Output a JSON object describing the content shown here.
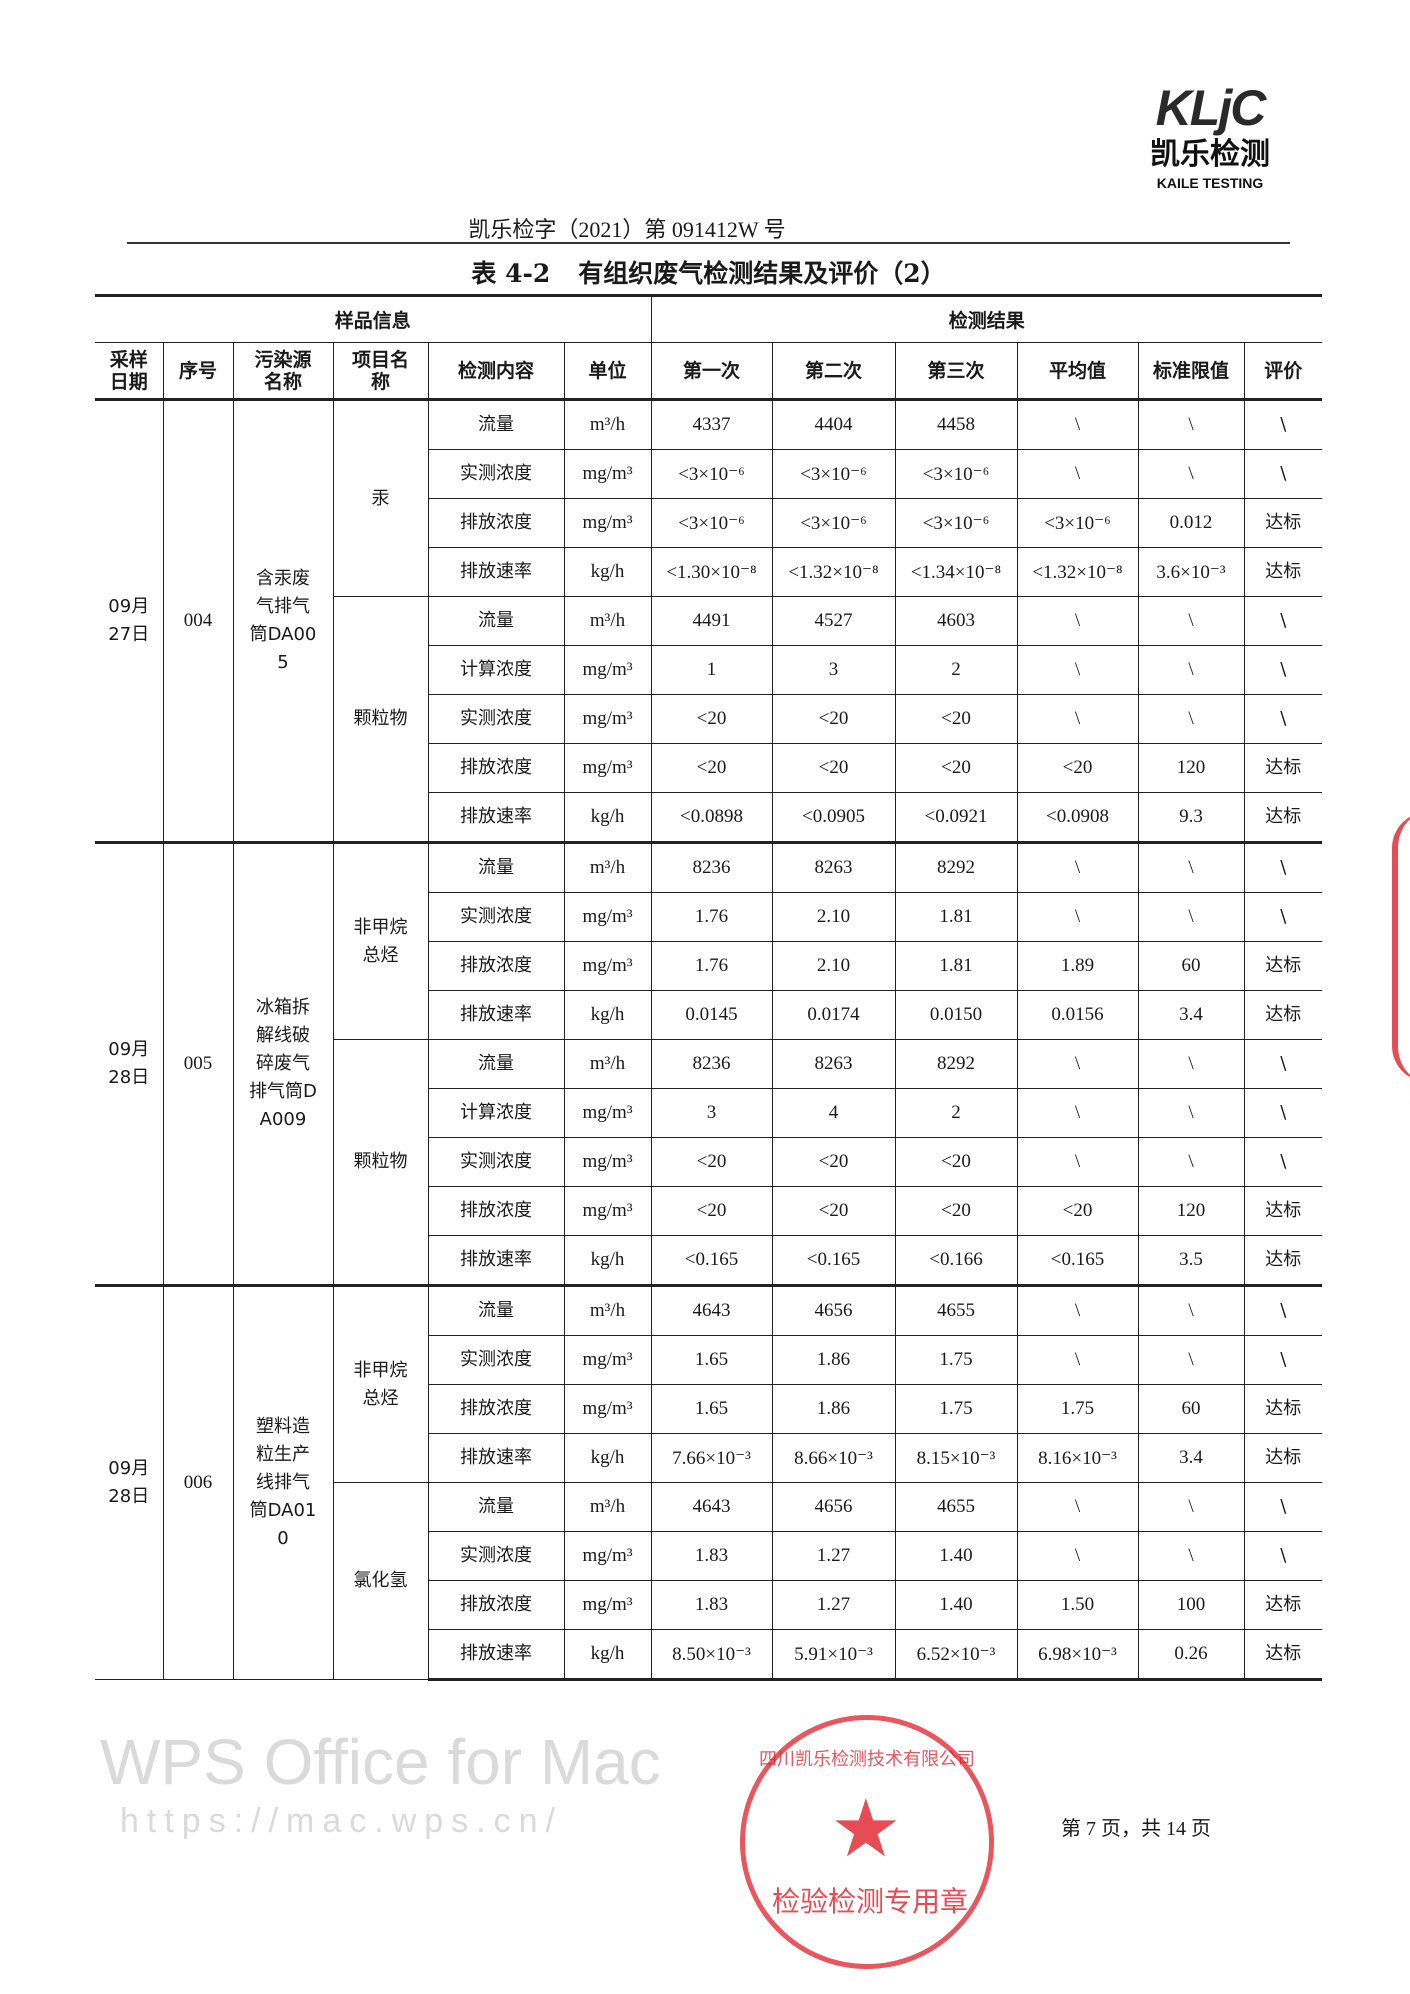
{
  "logo": {
    "mark": "KLjC",
    "cn": "凯乐检测",
    "en": "KAILE TESTING"
  },
  "doc_number": "凯乐检字（2021）第 091412W 号",
  "title": {
    "number": "表 4-2",
    "text": "有组织废气检测结果及评价（2）"
  },
  "table": {
    "group_headers": {
      "sample_info": "样品信息",
      "results": "检测结果"
    },
    "headers": [
      "采样日期",
      "序号",
      "污染源名称",
      "项目名称",
      "检测内容",
      "单位",
      "第一次",
      "第二次",
      "第三次",
      "平均值",
      "标准限值",
      "评价"
    ],
    "groups": [
      {
        "date": "09月27日",
        "no": "004",
        "source": "含汞废气排气筒DA005",
        "items": [
          {
            "name": "汞",
            "rows": [
              [
                "流量",
                "m³/h",
                "4337",
                "4404",
                "4458",
                "\\",
                "\\",
                "\\"
              ],
              [
                "实测浓度",
                "mg/m³",
                "<3×10⁻⁶",
                "<3×10⁻⁶",
                "<3×10⁻⁶",
                "\\",
                "\\",
                "\\"
              ],
              [
                "排放浓度",
                "mg/m³",
                "<3×10⁻⁶",
                "<3×10⁻⁶",
                "<3×10⁻⁶",
                "<3×10⁻⁶",
                "0.012",
                "达标"
              ],
              [
                "排放速率",
                "kg/h",
                "<1.30×10⁻⁸",
                "<1.32×10⁻⁸",
                "<1.34×10⁻⁸",
                "<1.32×10⁻⁸",
                "3.6×10⁻³",
                "达标"
              ]
            ]
          },
          {
            "name": "颗粒物",
            "rows": [
              [
                "流量",
                "m³/h",
                "4491",
                "4527",
                "4603",
                "\\",
                "\\",
                "\\"
              ],
              [
                "计算浓度",
                "mg/m³",
                "1",
                "3",
                "2",
                "\\",
                "\\",
                "\\"
              ],
              [
                "实测浓度",
                "mg/m³",
                "<20",
                "<20",
                "<20",
                "\\",
                "\\",
                "\\"
              ],
              [
                "排放浓度",
                "mg/m³",
                "<20",
                "<20",
                "<20",
                "<20",
                "120",
                "达标"
              ],
              [
                "排放速率",
                "kg/h",
                "<0.0898",
                "<0.0905",
                "<0.0921",
                "<0.0908",
                "9.3",
                "达标"
              ]
            ]
          }
        ]
      },
      {
        "date": "09月28日",
        "no": "005",
        "source": "冰箱拆解线破碎废气排气筒DA009",
        "items": [
          {
            "name": "非甲烷总烃",
            "rows": [
              [
                "流量",
                "m³/h",
                "8236",
                "8263",
                "8292",
                "\\",
                "\\",
                "\\"
              ],
              [
                "实测浓度",
                "mg/m³",
                "1.76",
                "2.10",
                "1.81",
                "\\",
                "\\",
                "\\"
              ],
              [
                "排放浓度",
                "mg/m³",
                "1.76",
                "2.10",
                "1.81",
                "1.89",
                "60",
                "达标"
              ],
              [
                "排放速率",
                "kg/h",
                "0.0145",
                "0.0174",
                "0.0150",
                "0.0156",
                "3.4",
                "达标"
              ]
            ]
          },
          {
            "name": "颗粒物",
            "rows": [
              [
                "流量",
                "m³/h",
                "8236",
                "8263",
                "8292",
                "\\",
                "\\",
                "\\"
              ],
              [
                "计算浓度",
                "mg/m³",
                "3",
                "4",
                "2",
                "\\",
                "\\",
                "\\"
              ],
              [
                "实测浓度",
                "mg/m³",
                "<20",
                "<20",
                "<20",
                "\\",
                "\\",
                "\\"
              ],
              [
                "排放浓度",
                "mg/m³",
                "<20",
                "<20",
                "<20",
                "<20",
                "120",
                "达标"
              ],
              [
                "排放速率",
                "kg/h",
                "<0.165",
                "<0.165",
                "<0.166",
                "<0.165",
                "3.5",
                "达标"
              ]
            ]
          }
        ]
      },
      {
        "date": "09月28日",
        "no": "006",
        "source": "塑料造粒生产线排气筒DA010",
        "items": [
          {
            "name": "非甲烷总烃",
            "rows": [
              [
                "流量",
                "m³/h",
                "4643",
                "4656",
                "4655",
                "\\",
                "\\",
                "\\"
              ],
              [
                "实测浓度",
                "mg/m³",
                "1.65",
                "1.86",
                "1.75",
                "\\",
                "\\",
                "\\"
              ],
              [
                "排放浓度",
                "mg/m³",
                "1.65",
                "1.86",
                "1.75",
                "1.75",
                "60",
                "达标"
              ],
              [
                "排放速率",
                "kg/h",
                "7.66×10⁻³",
                "8.66×10⁻³",
                "8.15×10⁻³",
                "8.16×10⁻³",
                "3.4",
                "达标"
              ]
            ]
          },
          {
            "name": "氯化氢",
            "rows": [
              [
                "流量",
                "m³/h",
                "4643",
                "4656",
                "4655",
                "\\",
                "\\",
                "\\"
              ],
              [
                "实测浓度",
                "mg/m³",
                "1.83",
                "1.27",
                "1.40",
                "\\",
                "\\",
                "\\"
              ],
              [
                "排放浓度",
                "mg/m³",
                "1.83",
                "1.27",
                "1.40",
                "1.50",
                "100",
                "达标"
              ],
              [
                "排放速率",
                "kg/h",
                "8.50×10⁻³",
                "5.91×10⁻³",
                "6.52×10⁻³",
                "6.98×10⁻³",
                "0.26",
                "达标"
              ]
            ]
          }
        ]
      }
    ]
  },
  "watermark": {
    "line1": "WPS Office for Mac",
    "line2": "https://mac.wps.cn/"
  },
  "stamp": {
    "ring": "四川凯乐检测技术有限公司",
    "bottom": "检验检测专用章",
    "color": "#e11e28"
  },
  "footer": "第 7 页，共 14 页"
}
